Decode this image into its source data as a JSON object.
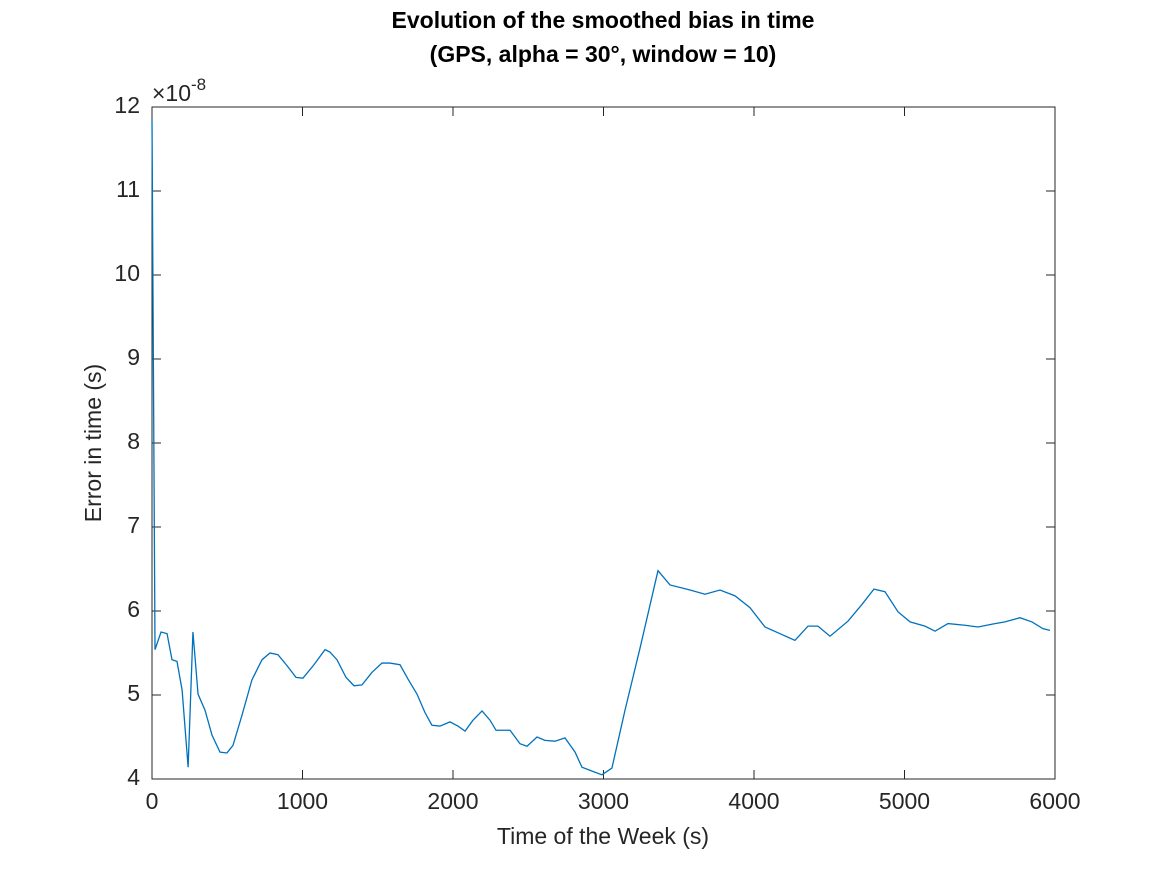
{
  "chart_data": {
    "type": "line",
    "title": [
      "Evolution of the smoothed bias in time",
      "(GPS, alpha = 30°, window = 10)"
    ],
    "xlabel": "Time of the Week (s)",
    "ylabel": "Error in time (s)",
    "y_exponent_label": {
      "base": "×10",
      "exponent": "-8"
    },
    "x": [
      0,
      20,
      60,
      100,
      133,
      166,
      200,
      240,
      272,
      306,
      352,
      399,
      452,
      498,
      538,
      598,
      664,
      731,
      784,
      837,
      897,
      957,
      1003,
      1076,
      1150,
      1183,
      1229,
      1289,
      1342,
      1395,
      1462,
      1528,
      1581,
      1648,
      1701,
      1761,
      1814,
      1860,
      1914,
      1980,
      2033,
      2080,
      2133,
      2193,
      2246,
      2286,
      2379,
      2445,
      2492,
      2558,
      2611,
      2678,
      2744,
      2811,
      2857,
      2944,
      2990,
      3056,
      3143,
      3243,
      3362,
      3442,
      3575,
      3674,
      3774,
      3874,
      3973,
      4073,
      4173,
      4272,
      4359,
      4425,
      4505,
      4625,
      4718,
      4797,
      4870,
      4957,
      5037,
      5136,
      5203,
      5289,
      5402,
      5488,
      5601,
      5668,
      5767,
      5847,
      5920,
      5967
    ],
    "series": [
      {
        "color": "#0072bd",
        "values": [
          11.85,
          5.54,
          5.75,
          5.73,
          5.42,
          5.4,
          5.06,
          4.14,
          5.75,
          5.01,
          4.82,
          4.52,
          4.32,
          4.31,
          4.4,
          4.76,
          5.18,
          5.42,
          5.5,
          5.48,
          5.35,
          5.21,
          5.2,
          5.36,
          5.54,
          5.51,
          5.42,
          5.21,
          5.11,
          5.12,
          5.27,
          5.38,
          5.38,
          5.36,
          5.19,
          5.01,
          4.79,
          4.64,
          4.63,
          4.68,
          4.63,
          4.57,
          4.7,
          4.81,
          4.7,
          4.58,
          4.58,
          4.42,
          4.39,
          4.5,
          4.46,
          4.45,
          4.49,
          4.32,
          4.14,
          4.08,
          4.05,
          4.13,
          4.82,
          5.56,
          6.48,
          6.31,
          6.25,
          6.2,
          6.25,
          6.18,
          6.04,
          5.81,
          5.73,
          5.65,
          5.82,
          5.82,
          5.7,
          5.88,
          6.08,
          6.26,
          6.23,
          5.99,
          5.87,
          5.82,
          5.76,
          5.85,
          5.83,
          5.81,
          5.85,
          5.87,
          5.92,
          5.87,
          5.79,
          5.77
        ]
      }
    ],
    "xlim": [
      0,
      6000
    ],
    "xticks": [
      0,
      1000,
      2000,
      3000,
      4000,
      5000,
      6000
    ],
    "ylim": [
      4,
      12
    ],
    "yticks": [
      4,
      5,
      6,
      7,
      8,
      9,
      10,
      11,
      12
    ]
  }
}
